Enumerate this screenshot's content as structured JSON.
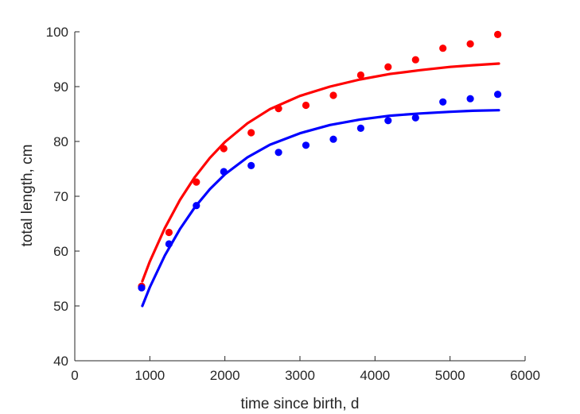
{
  "chart_data": {
    "type": "scatter",
    "title": "",
    "xlabel": "time since birth, d",
    "ylabel": "total length, cm",
    "xlim": [
      0,
      6000
    ],
    "ylim": [
      40,
      100
    ],
    "xticks": [
      0,
      1000,
      2000,
      3000,
      4000,
      5000,
      6000
    ],
    "yticks": [
      40,
      50,
      60,
      70,
      80,
      90,
      100
    ],
    "xtick_labels": [
      "0",
      "1000",
      "2000",
      "3000",
      "4000",
      "5000",
      "6000"
    ],
    "ytick_labels": [
      "40",
      "50",
      "60",
      "70",
      "80",
      "90",
      "100"
    ],
    "grid": false,
    "legend": "none",
    "series": [
      {
        "color": "#ff0000",
        "points": [
          {
            "x": 890,
            "y": 53.6
          },
          {
            "x": 1255,
            "y": 63.4
          },
          {
            "x": 1620,
            "y": 72.6
          },
          {
            "x": 1985,
            "y": 78.7
          },
          {
            "x": 2350,
            "y": 81.6
          },
          {
            "x": 2715,
            "y": 86.0
          },
          {
            "x": 3080,
            "y": 86.6
          },
          {
            "x": 3445,
            "y": 88.4
          },
          {
            "x": 3810,
            "y": 92.1
          },
          {
            "x": 4175,
            "y": 93.6
          },
          {
            "x": 4540,
            "y": 94.9
          },
          {
            "x": 4905,
            "y": 97.0
          },
          {
            "x": 5270,
            "y": 97.8
          },
          {
            "x": 5635,
            "y": 99.5
          }
        ],
        "fit": [
          {
            "x": 900,
            "y": 54.5
          },
          {
            "x": 1000,
            "y": 58.1
          },
          {
            "x": 1200,
            "y": 64.2
          },
          {
            "x": 1400,
            "y": 69.3
          },
          {
            "x": 1600,
            "y": 73.5
          },
          {
            "x": 1800,
            "y": 77.0
          },
          {
            "x": 2000,
            "y": 79.9
          },
          {
            "x": 2300,
            "y": 83.3
          },
          {
            "x": 2600,
            "y": 85.9
          },
          {
            "x": 3000,
            "y": 88.3
          },
          {
            "x": 3400,
            "y": 90.0
          },
          {
            "x": 3800,
            "y": 91.3
          },
          {
            "x": 4200,
            "y": 92.3
          },
          {
            "x": 4600,
            "y": 93.0
          },
          {
            "x": 5000,
            "y": 93.6
          },
          {
            "x": 5300,
            "y": 93.9
          },
          {
            "x": 5650,
            "y": 94.2
          }
        ]
      },
      {
        "color": "#0000ff",
        "points": [
          {
            "x": 890,
            "y": 53.3
          },
          {
            "x": 1255,
            "y": 61.3
          },
          {
            "x": 1620,
            "y": 68.3
          },
          {
            "x": 1985,
            "y": 74.5
          },
          {
            "x": 2350,
            "y": 75.6
          },
          {
            "x": 2715,
            "y": 78.0
          },
          {
            "x": 3080,
            "y": 79.3
          },
          {
            "x": 3445,
            "y": 80.4
          },
          {
            "x": 3810,
            "y": 82.4
          },
          {
            "x": 4175,
            "y": 83.8
          },
          {
            "x": 4540,
            "y": 84.3
          },
          {
            "x": 4905,
            "y": 87.2
          },
          {
            "x": 5270,
            "y": 87.8
          },
          {
            "x": 5635,
            "y": 88.6
          }
        ],
        "fit": [
          {
            "x": 900,
            "y": 50.0
          },
          {
            "x": 1000,
            "y": 53.4
          },
          {
            "x": 1200,
            "y": 59.2
          },
          {
            "x": 1400,
            "y": 64.0
          },
          {
            "x": 1600,
            "y": 68.0
          },
          {
            "x": 1800,
            "y": 71.3
          },
          {
            "x": 2000,
            "y": 74.0
          },
          {
            "x": 2300,
            "y": 77.1
          },
          {
            "x": 2600,
            "y": 79.4
          },
          {
            "x": 3000,
            "y": 81.5
          },
          {
            "x": 3400,
            "y": 83.0
          },
          {
            "x": 3800,
            "y": 84.0
          },
          {
            "x": 4200,
            "y": 84.7
          },
          {
            "x": 4600,
            "y": 85.1
          },
          {
            "x": 5000,
            "y": 85.4
          },
          {
            "x": 5300,
            "y": 85.6
          },
          {
            "x": 5650,
            "y": 85.7
          }
        ]
      }
    ]
  }
}
